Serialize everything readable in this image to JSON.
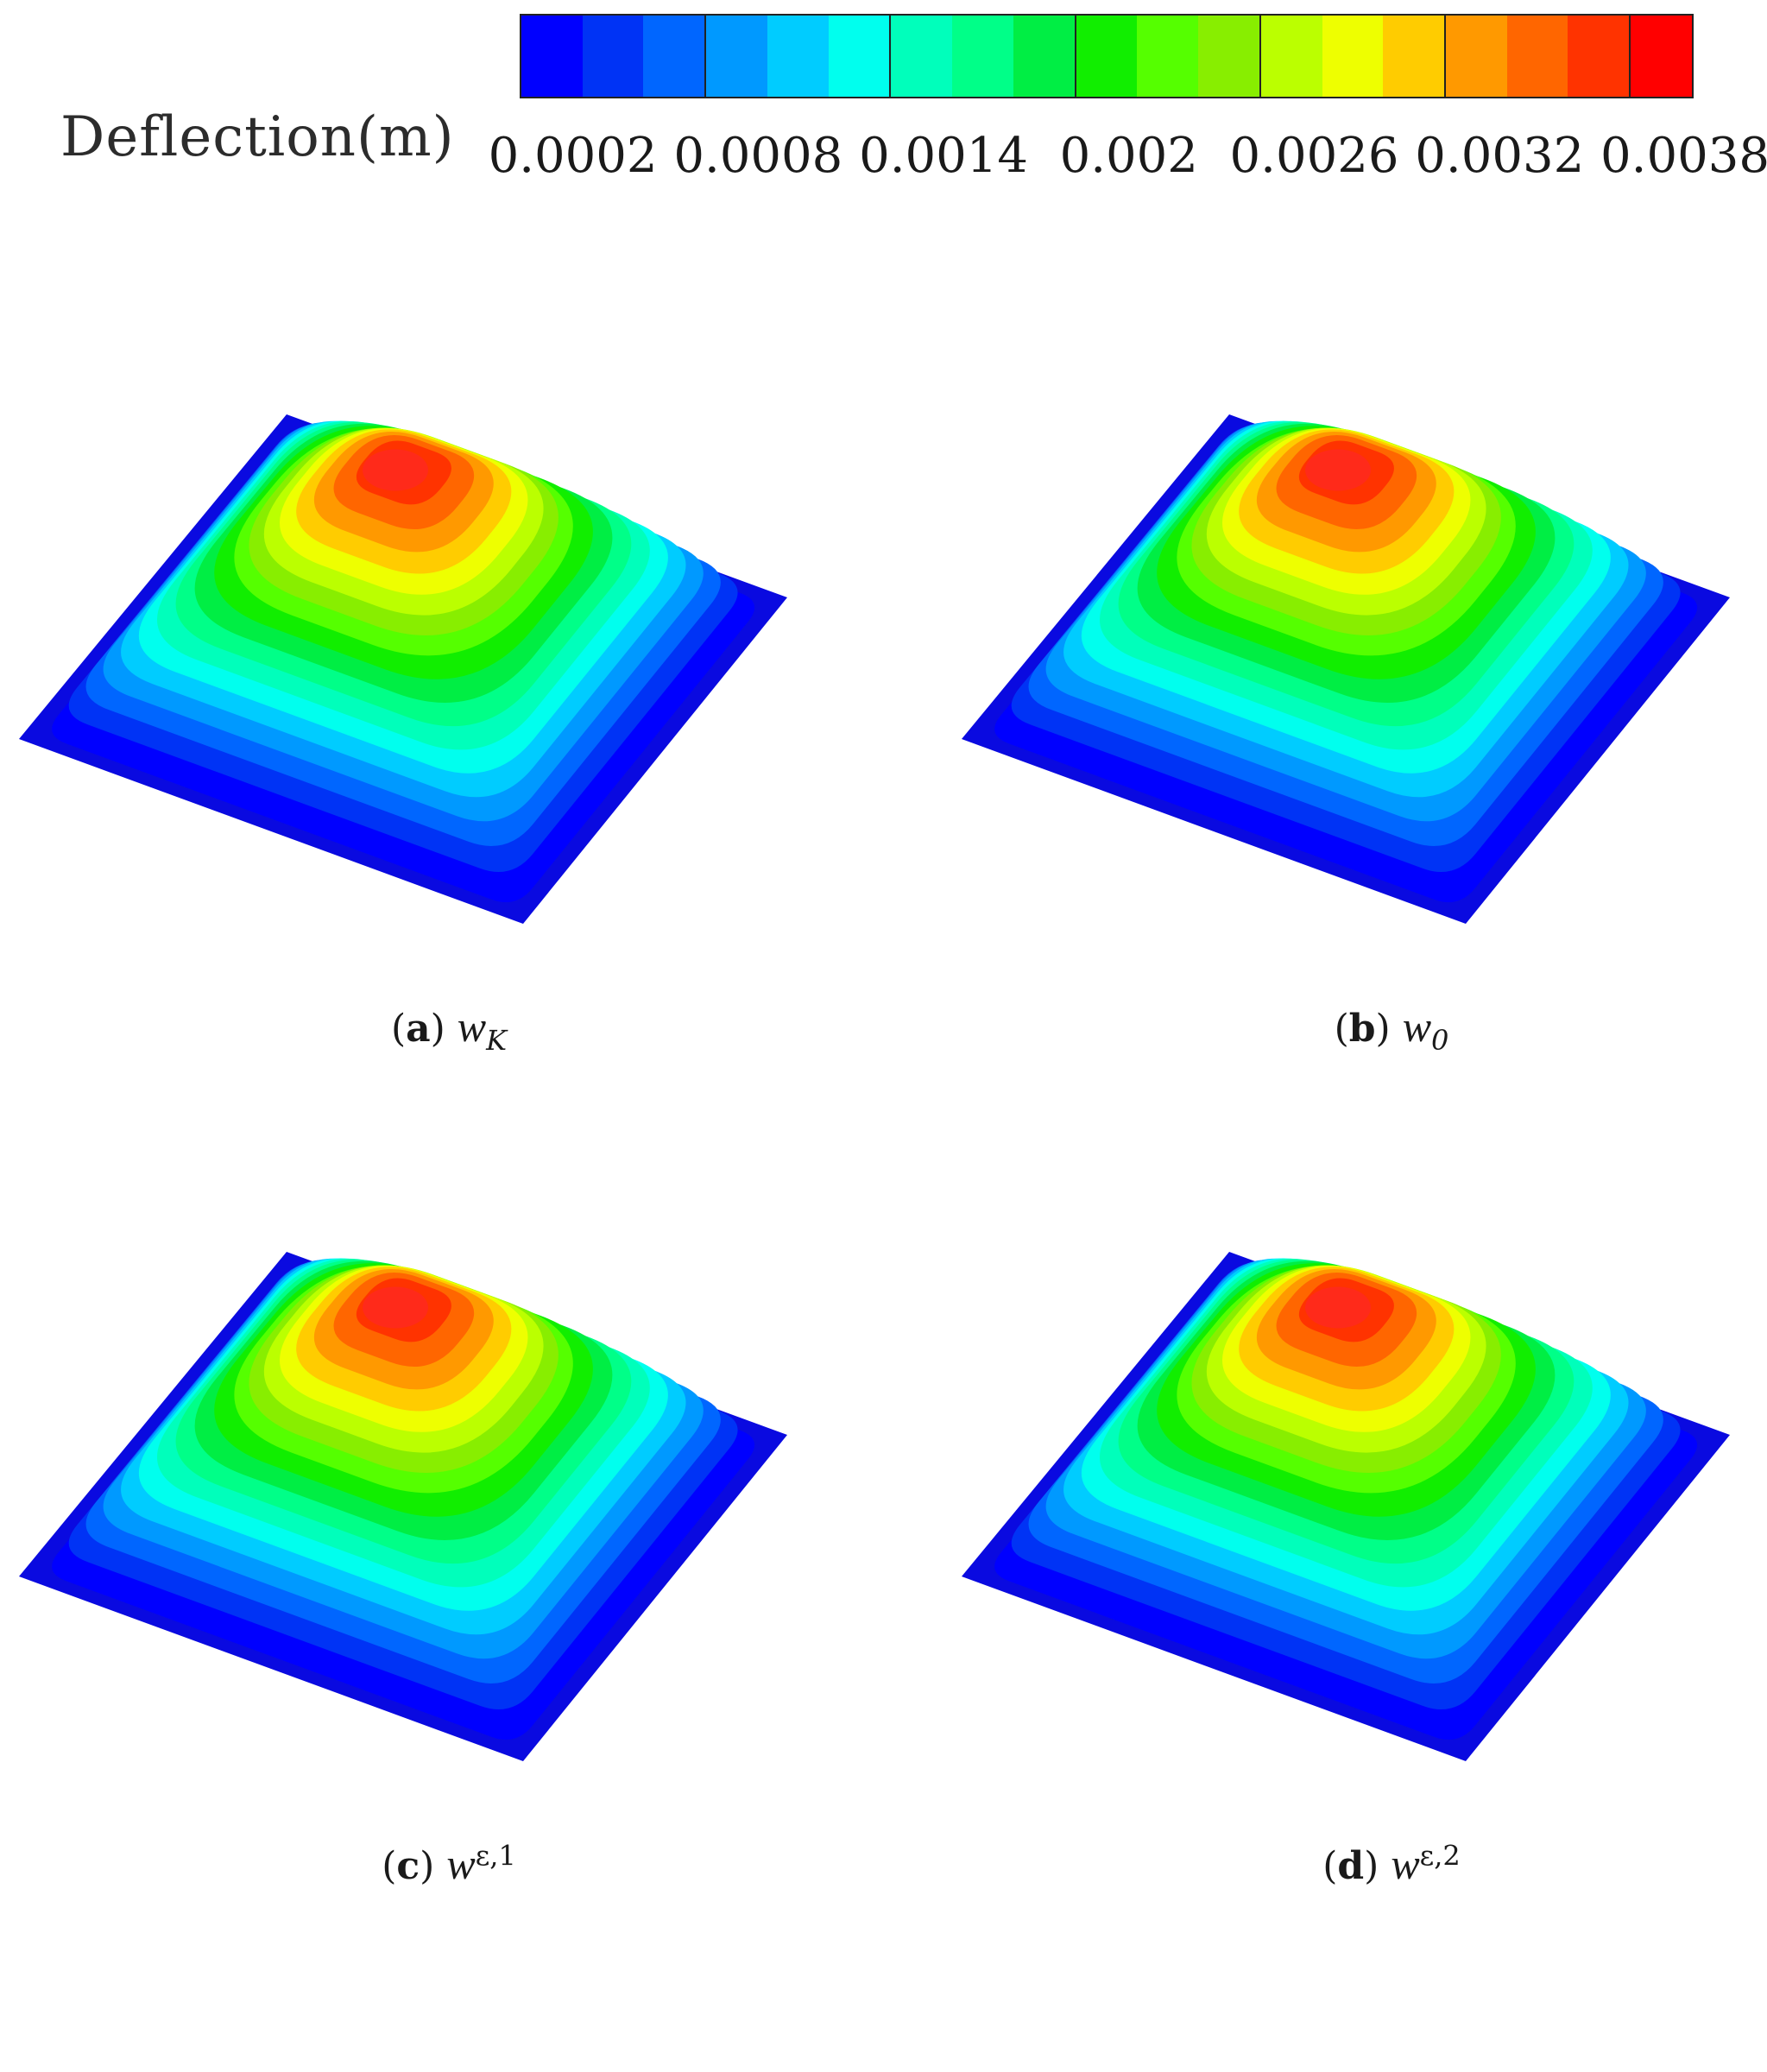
{
  "figure": {
    "legend": {
      "title": "Deflection(m)",
      "colors": [
        "#0000ff",
        "#0033f5",
        "#0066ff",
        "#0099ff",
        "#00ccff",
        "#00ffee",
        "#00ffbb",
        "#00ff88",
        "#00ee44",
        "#11ee00",
        "#55ff00",
        "#88ee00",
        "#bbff00",
        "#eeff00",
        "#ffcc00",
        "#ff9900",
        "#ff6600",
        "#ff3300",
        "#ff0000"
      ],
      "tick_labels": [
        "0.0002",
        "0.0008",
        "0.0014",
        "0.002",
        "0.0026",
        "0.0032",
        "0.0038"
      ],
      "tick_values": [
        0.0002,
        0.0008,
        0.0014,
        0.002,
        0.0026,
        0.0032,
        0.0038
      ],
      "min_value": 0.0,
      "max_value": 0.0038
    },
    "panels": [
      {
        "letter": "a",
        "symbol": "w",
        "sub": "K",
        "sup": ""
      },
      {
        "letter": "b",
        "symbol": "w",
        "sub": "0",
        "sup": ""
      },
      {
        "letter": "c",
        "symbol": "w",
        "sub": "",
        "sup": "ε,1"
      },
      {
        "letter": "d",
        "symbol": "w",
        "sub": "",
        "sup": "ε,2"
      }
    ]
  }
}
